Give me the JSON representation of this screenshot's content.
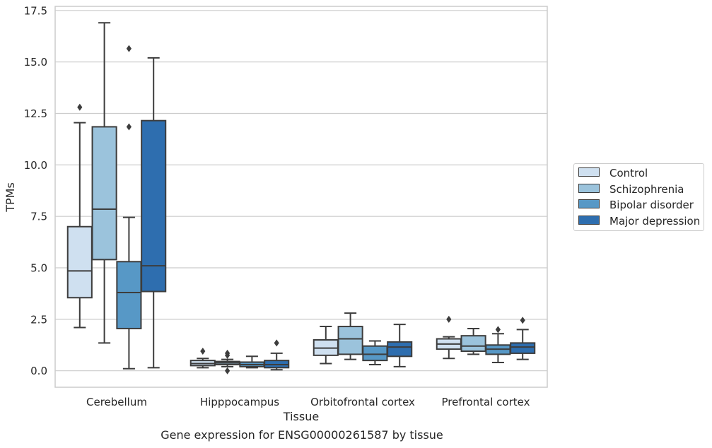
{
  "chart_data": {
    "type": "box",
    "title": "",
    "xlabel": "Tissue",
    "ylabel": "TPMs",
    "caption": "Gene expression for ENSG00000261587 by tissue",
    "categories": [
      "Cerebellum",
      "Hipppocampus",
      "Orbitofrontal cortex",
      "Prefrontal cortex"
    ],
    "ylim": [
      -0.8,
      17.7
    ],
    "yticks": [
      "0.0",
      "2.5",
      "5.0",
      "7.5",
      "10.0",
      "12.5",
      "15.0",
      "17.5"
    ],
    "ytick_values": [
      0,
      2.5,
      5,
      7.5,
      10,
      12.5,
      15,
      17.5
    ],
    "grid": true,
    "legend_position": "right, outside plot",
    "series": [
      {
        "name": "Control",
        "color": "#cfe0f0",
        "boxes": [
          {
            "whisker_low": 2.1,
            "q1": 3.55,
            "median": 4.85,
            "q3": 7.0,
            "whisker_high": 12.05,
            "outliers": [
              12.8
            ]
          },
          {
            "whisker_low": 0.15,
            "q1": 0.25,
            "median": 0.35,
            "q3": 0.5,
            "whisker_high": 0.6,
            "outliers": [
              0.95
            ]
          },
          {
            "whisker_low": 0.35,
            "q1": 0.75,
            "median": 1.1,
            "q3": 1.5,
            "whisker_high": 2.15,
            "outliers": []
          },
          {
            "whisker_low": 0.6,
            "q1": 1.05,
            "median": 1.3,
            "q3": 1.55,
            "whisker_high": 1.65,
            "outliers": [
              2.5
            ]
          }
        ]
      },
      {
        "name": "Schizophrenia",
        "color": "#9bc3dc",
        "boxes": [
          {
            "whisker_low": 1.35,
            "q1": 5.4,
            "median": 7.85,
            "q3": 11.85,
            "whisker_high": 16.9,
            "outliers": []
          },
          {
            "whisker_low": 0.2,
            "q1": 0.3,
            "median": 0.38,
            "q3": 0.45,
            "whisker_high": 0.55,
            "outliers": [
              0.85,
              0.75,
              0.0
            ]
          },
          {
            "whisker_low": 0.55,
            "q1": 0.8,
            "median": 1.55,
            "q3": 2.15,
            "whisker_high": 2.8,
            "outliers": []
          },
          {
            "whisker_low": 0.8,
            "q1": 0.95,
            "median": 1.2,
            "q3": 1.7,
            "whisker_high": 2.05,
            "outliers": []
          }
        ]
      },
      {
        "name": "Bipolar disorder",
        "color": "#5798c6",
        "boxes": [
          {
            "whisker_low": 0.1,
            "q1": 2.05,
            "median": 3.8,
            "q3": 5.3,
            "whisker_high": 7.45,
            "outliers": [
              11.85,
              15.65
            ]
          },
          {
            "whisker_low": 0.15,
            "q1": 0.2,
            "median": 0.3,
            "q3": 0.42,
            "whisker_high": 0.7,
            "outliers": []
          },
          {
            "whisker_low": 0.3,
            "q1": 0.5,
            "median": 0.8,
            "q3": 1.2,
            "whisker_high": 1.45,
            "outliers": []
          },
          {
            "whisker_low": 0.4,
            "q1": 0.8,
            "median": 1.05,
            "q3": 1.25,
            "whisker_high": 1.8,
            "outliers": [
              2.0
            ]
          }
        ]
      },
      {
        "name": "Major depression",
        "color": "#2e6eaf",
        "boxes": [
          {
            "whisker_low": 0.15,
            "q1": 3.85,
            "median": 5.1,
            "q3": 12.15,
            "whisker_high": 15.2,
            "outliers": []
          },
          {
            "whisker_low": 0.05,
            "q1": 0.15,
            "median": 0.3,
            "q3": 0.5,
            "whisker_high": 0.85,
            "outliers": [
              1.35
            ]
          },
          {
            "whisker_low": 0.2,
            "q1": 0.7,
            "median": 1.15,
            "q3": 1.4,
            "whisker_high": 2.25,
            "outliers": []
          },
          {
            "whisker_low": 0.55,
            "q1": 0.85,
            "median": 1.15,
            "q3": 1.35,
            "whisker_high": 2.0,
            "outliers": [
              2.45
            ]
          }
        ]
      }
    ]
  }
}
